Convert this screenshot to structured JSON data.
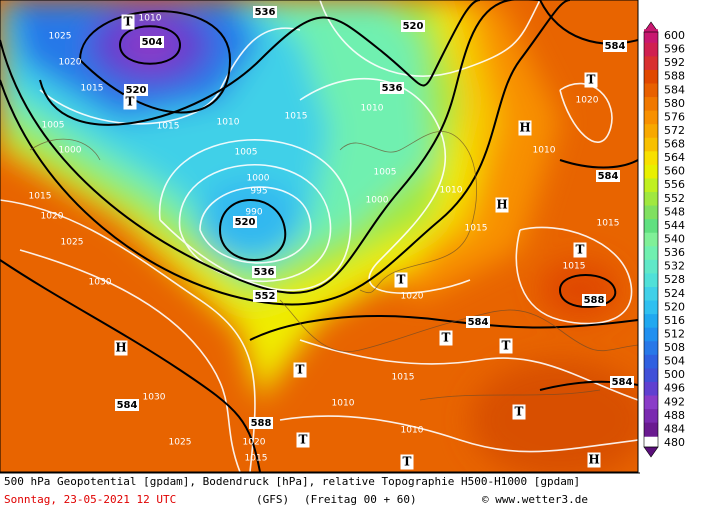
{
  "map": {
    "geopotential_labels": [
      "504",
      "520",
      "520",
      "536",
      "552",
      "536",
      "536",
      "520",
      "584",
      "584",
      "588",
      "584",
      "584",
      "584",
      "588"
    ],
    "high_labels": [
      "H",
      "H",
      "H",
      "H"
    ],
    "low_labels": [
      "T",
      "T",
      "T",
      "T",
      "T",
      "T",
      "T",
      "T",
      "T",
      "T",
      "T"
    ],
    "pressure_labels": [
      "1010",
      "1025",
      "1020",
      "1015",
      "1005",
      "1000",
      "1010",
      "1005",
      "1000",
      "995",
      "990",
      "1015",
      "1015",
      "1010",
      "1005",
      "1000",
      "1010",
      "1015",
      "1020",
      "1015",
      "1020",
      "1025",
      "1030",
      "1030",
      "1025",
      "1020",
      "1015",
      "1010",
      "1015",
      "1010",
      "1015",
      "1020",
      "1010",
      "1015"
    ]
  },
  "legend": {
    "levels": [
      600,
      596,
      592,
      588,
      584,
      580,
      576,
      572,
      568,
      564,
      560,
      556,
      552,
      548,
      544,
      540,
      536,
      532,
      528,
      524,
      520,
      516,
      512,
      508,
      504,
      500,
      496,
      492,
      488,
      484,
      480
    ],
    "colors": [
      "#c81870",
      "#d02050",
      "#d83030",
      "#e04800",
      "#e86000",
      "#f07800",
      "#f89000",
      "#f8a800",
      "#f8c000",
      "#f8e000",
      "#e8f000",
      "#c0f020",
      "#a0e840",
      "#80e060",
      "#60e080",
      "#80f098",
      "#70f0b0",
      "#60e8c8",
      "#50e0d8",
      "#40d0e8",
      "#30c0f0",
      "#20a8f0",
      "#2090f0",
      "#2878e8",
      "#3060e0",
      "#4050d8",
      "#6040d0",
      "#8a3cc8",
      "#7a2ab0",
      "#6a1a90",
      "#5a0f7a"
    ]
  },
  "caption": {
    "line1": "500 hPa Geopotential [gpdam], Bodendruck [hPa], relative Topographie H500-H1000 [gpdam]",
    "date": "Sonntag, 23-05-2021  12 UTC",
    "model": "(GFS)",
    "run": "(Freitag 00 + 60)",
    "source": "© www.wetter3.de"
  }
}
